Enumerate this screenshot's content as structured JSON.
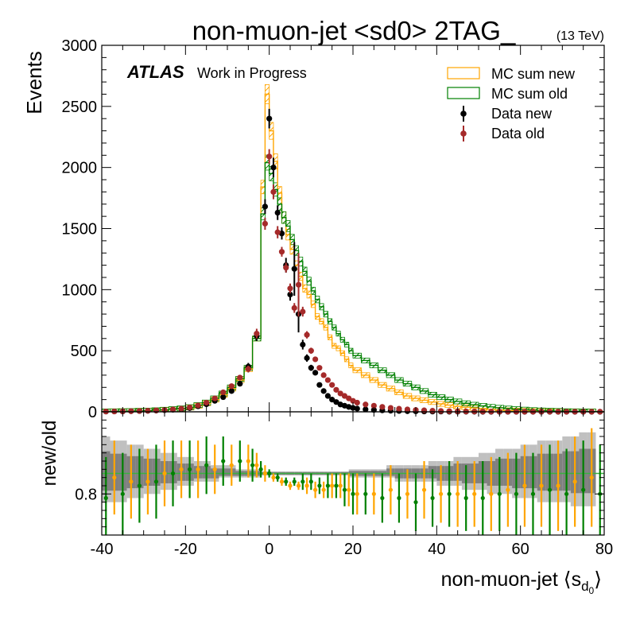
{
  "header": {
    "title": "non-muon-jet <sd0> 2TAG_",
    "energy_label": "(13 TeV)",
    "atlas_label": "ATLAS",
    "atlas_sub": "Work in Progress"
  },
  "colors": {
    "mc_new": "#ffa500",
    "mc_old": "#008000",
    "data_new": "#000000",
    "data_old": "#a52a2a",
    "ratio_band_outer": "#c0c0c0",
    "ratio_band_inner": "#808080",
    "ratio_line": "#3cb043"
  },
  "legend": {
    "position": "top-right",
    "entries": [
      {
        "key": "mc_new",
        "label": "MC sum new",
        "style": "box"
      },
      {
        "key": "mc_old",
        "label": "MC sum old",
        "style": "box"
      },
      {
        "key": "data_new",
        "label": "Data new",
        "style": "marker"
      },
      {
        "key": "data_old",
        "label": "Data old",
        "style": "marker"
      }
    ]
  },
  "chart_data": [
    {
      "id": "main",
      "type": "line",
      "subtype": "step-histogram-with-points",
      "xlim": [
        -40,
        80
      ],
      "ylim": [
        0,
        3000
      ],
      "ylabel": "Events",
      "xlabel": "",
      "xticks": [
        -40,
        -20,
        0,
        20,
        40,
        60,
        80
      ],
      "yticks": [
        0,
        500,
        1000,
        1500,
        2000,
        2500,
        3000
      ],
      "bin_edges": [
        -40,
        -38,
        -36,
        -34,
        -32,
        -30,
        -28,
        -26,
        -24,
        -22,
        -20,
        -18,
        -16,
        -14,
        -12,
        -10,
        -8,
        -6,
        -4,
        -2,
        -1,
        0,
        1,
        2,
        3,
        4,
        5,
        6,
        7,
        8,
        9,
        10,
        11,
        12,
        13,
        14,
        15,
        16,
        17,
        18,
        19,
        20,
        22,
        24,
        26,
        28,
        30,
        32,
        34,
        36,
        38,
        40,
        42,
        44,
        46,
        48,
        50,
        52,
        54,
        56,
        58,
        60,
        62,
        64,
        66,
        68,
        70,
        72,
        74,
        76,
        78,
        80
      ],
      "series": [
        {
          "name": "MC sum new",
          "key": "mc_new",
          "style": "step",
          "values": [
            3,
            4,
            5,
            6,
            8,
            10,
            12,
            15,
            20,
            25,
            35,
            50,
            70,
            100,
            140,
            190,
            260,
            350,
            600,
            1840,
            2600,
            2300,
            2050,
            1790,
            1590,
            1450,
            1330,
            1200,
            1110,
            1010,
            960,
            880,
            780,
            740,
            690,
            610,
            540,
            520,
            480,
            430,
            380,
            340,
            300,
            260,
            220,
            190,
            160,
            130,
            110,
            95,
            80,
            65,
            55,
            45,
            38,
            32,
            26,
            20,
            16,
            12,
            10,
            8,
            6,
            5,
            4,
            4,
            3,
            3,
            2,
            2
          ]
        },
        {
          "name": "MC sum old",
          "key": "mc_old",
          "style": "step",
          "values": [
            3,
            4,
            5,
            6,
            8,
            10,
            13,
            17,
            22,
            28,
            38,
            55,
            76,
            110,
            150,
            200,
            270,
            360,
            600,
            1620,
            2040,
            1950,
            1820,
            1700,
            1590,
            1520,
            1410,
            1320,
            1230,
            1150,
            1070,
            990,
            920,
            860,
            800,
            740,
            690,
            640,
            590,
            550,
            500,
            460,
            420,
            380,
            340,
            300,
            260,
            230,
            200,
            170,
            140,
            120,
            100,
            85,
            70,
            58,
            48,
            40,
            33,
            27,
            22,
            18,
            14,
            11,
            9,
            7,
            5,
            4,
            3,
            3
          ]
        },
        {
          "name": "Data new",
          "key": "data_new",
          "style": "points",
          "x": [
            -39,
            -37,
            -35,
            -33,
            -31,
            -29,
            -27,
            -25,
            -23,
            -21,
            -19,
            -17,
            -15,
            -13,
            -11,
            -9,
            -7,
            -5,
            -3,
            -1,
            0,
            1,
            2,
            3,
            4,
            5,
            6,
            7,
            8,
            9,
            10,
            11,
            12,
            13,
            14,
            15,
            16,
            17,
            18,
            19,
            20,
            21,
            23,
            25,
            27,
            29,
            31,
            33,
            35,
            37,
            39,
            41,
            43,
            45,
            47,
            49,
            51,
            53,
            55,
            57,
            59,
            61,
            63,
            65,
            67,
            69,
            71,
            73,
            75,
            77,
            79
          ],
          "values": [
            2,
            3,
            3,
            5,
            6,
            8,
            10,
            13,
            17,
            22,
            30,
            45,
            62,
            90,
            120,
            170,
            230,
            370,
            620,
            1680,
            2400,
            2000,
            1630,
            1460,
            1200,
            960,
            1170,
            800,
            550,
            440,
            360,
            320,
            220,
            170,
            130,
            100,
            80,
            60,
            50,
            40,
            32,
            26,
            20,
            15,
            12,
            9,
            7,
            5,
            4,
            3,
            2,
            2,
            1,
            1,
            1,
            1,
            0,
            0,
            0,
            0,
            0,
            0,
            0,
            0,
            0,
            0,
            0,
            0,
            0,
            0,
            0
          ],
          "errors": [
            2,
            2,
            2,
            3,
            3,
            4,
            4,
            5,
            6,
            7,
            8,
            10,
            12,
            14,
            16,
            18,
            22,
            30,
            40,
            60,
            80,
            80,
            60,
            50,
            60,
            50,
            220,
            150,
            40,
            30,
            25,
            22,
            18,
            16,
            14,
            12,
            10,
            9,
            8,
            7,
            6,
            6,
            5,
            5,
            4,
            4,
            3,
            3,
            3,
            2,
            2,
            2,
            1,
            1,
            1,
            1,
            1,
            1,
            1,
            1,
            1,
            1,
            1,
            1,
            1,
            1,
            1,
            1,
            1,
            1,
            1
          ]
        },
        {
          "name": "Data old",
          "key": "data_old",
          "style": "points",
          "x": [
            -39,
            -37,
            -35,
            -33,
            -31,
            -29,
            -27,
            -25,
            -23,
            -21,
            -19,
            -17,
            -15,
            -13,
            -11,
            -9,
            -7,
            -5,
            -3,
            -1,
            0,
            1,
            2,
            3,
            4,
            5,
            6,
            7,
            8,
            9,
            10,
            11,
            12,
            13,
            14,
            15,
            16,
            17,
            18,
            19,
            20,
            21,
            23,
            25,
            27,
            29,
            31,
            33,
            35,
            37,
            39,
            41,
            43,
            45,
            47,
            49,
            51,
            53,
            55,
            57,
            59,
            61,
            63,
            65,
            67,
            69,
            71,
            73,
            75,
            77,
            79
          ],
          "values": [
            3,
            3,
            4,
            5,
            7,
            9,
            12,
            15,
            20,
            26,
            36,
            52,
            75,
            110,
            160,
            210,
            280,
            350,
            640,
            1540,
            2090,
            1800,
            1470,
            1310,
            1180,
            1010,
            850,
            1040,
            820,
            630,
            500,
            430,
            360,
            300,
            260,
            220,
            180,
            150,
            130,
            110,
            90,
            75,
            60,
            50,
            40,
            32,
            25,
            20,
            15,
            12,
            9,
            7,
            5,
            4,
            3,
            3,
            2,
            2,
            1,
            1,
            1,
            1,
            1,
            1,
            1,
            1,
            1,
            1,
            1,
            1,
            1
          ],
          "errors": [
            2,
            2,
            2,
            3,
            3,
            4,
            4,
            5,
            6,
            7,
            8,
            10,
            12,
            14,
            16,
            18,
            22,
            28,
            40,
            50,
            60,
            60,
            50,
            40,
            40,
            40,
            40,
            260,
            40,
            30,
            25,
            22,
            18,
            16,
            14,
            12,
            10,
            9,
            8,
            7,
            6,
            6,
            5,
            5,
            4,
            4,
            3,
            3,
            3,
            2,
            2,
            2,
            1,
            1,
            1,
            1,
            1,
            1,
            1,
            1,
            1,
            1,
            1,
            1,
            1,
            1,
            1,
            1,
            1,
            1,
            1
          ]
        }
      ]
    },
    {
      "id": "ratio",
      "type": "scatter",
      "xlim": [
        -40,
        80
      ],
      "ylim": [
        0.7,
        1.0
      ],
      "ylabel": "new/old",
      "xlabel": "non-muon-jet ⟨s",
      "xlabel_sub": "d",
      "xlabel_subsub": "0",
      "xlabel_end": "⟩",
      "xticks": [
        -40,
        -20,
        0,
        20,
        40,
        60,
        80
      ],
      "yticks": [
        0.8
      ],
      "reference": 0.85,
      "band_outer": [
        0.78,
        0.78,
        0.78,
        0.79,
        0.79,
        0.8,
        0.8,
        0.81,
        0.81,
        0.82,
        0.82,
        0.83,
        0.83,
        0.83,
        0.84,
        0.84,
        0.84,
        0.84,
        0.84,
        0.845,
        0.845,
        0.845,
        0.845,
        0.845,
        0.845,
        0.845,
        0.845,
        0.845,
        0.845,
        0.845,
        0.845,
        0.845,
        0.845,
        0.845,
        0.845,
        0.845,
        0.845,
        0.845,
        0.845,
        0.845,
        0.84,
        0.84,
        0.84,
        0.84,
        0.84,
        0.84,
        0.83,
        0.83,
        0.83,
        0.83,
        0.83,
        0.82,
        0.82,
        0.82,
        0.81,
        0.81,
        0.81,
        0.8,
        0.8,
        0.8,
        0.79,
        0.79,
        0.79,
        0.78,
        0.78,
        0.78,
        0.78,
        0.77,
        0.77,
        0.77
      ],
      "band_outer_hi": [
        0.94,
        0.93,
        0.93,
        0.92,
        0.92,
        0.91,
        0.91,
        0.9,
        0.9,
        0.89,
        0.89,
        0.88,
        0.88,
        0.87,
        0.87,
        0.87,
        0.86,
        0.86,
        0.86,
        0.855,
        0.855,
        0.855,
        0.855,
        0.855,
        0.855,
        0.855,
        0.855,
        0.855,
        0.855,
        0.855,
        0.855,
        0.855,
        0.855,
        0.855,
        0.855,
        0.855,
        0.855,
        0.855,
        0.855,
        0.855,
        0.86,
        0.86,
        0.86,
        0.86,
        0.86,
        0.87,
        0.87,
        0.87,
        0.87,
        0.87,
        0.88,
        0.88,
        0.88,
        0.89,
        0.89,
        0.89,
        0.9,
        0.9,
        0.91,
        0.91,
        0.91,
        0.92,
        0.92,
        0.93,
        0.93,
        0.93,
        0.94,
        0.94,
        0.95,
        0.95
      ],
      "series": [
        {
          "name": "Data new",
          "key": "ratio_orange",
          "style": "points",
          "x": [
            -37,
            -33,
            -29,
            -25,
            -21,
            -17,
            -13,
            -9,
            -5,
            -3,
            -1,
            1,
            3,
            5,
            7,
            9,
            11,
            13,
            15,
            17,
            19,
            21,
            25,
            29,
            33,
            37,
            41,
            45,
            49,
            53,
            57,
            61,
            65,
            69,
            73,
            77
          ],
          "values": [
            0.84,
            0.83,
            0.83,
            0.85,
            0.86,
            0.86,
            0.86,
            0.87,
            0.88,
            0.87,
            0.85,
            0.84,
            0.83,
            0.82,
            0.82,
            0.82,
            0.81,
            0.81,
            0.82,
            0.82,
            0.81,
            0.8,
            0.8,
            0.81,
            0.8,
            0.81,
            0.8,
            0.8,
            0.8,
            0.8,
            0.81,
            0.82,
            0.82,
            0.82,
            0.83,
            0.84
          ],
          "errors": [
            0.09,
            0.09,
            0.08,
            0.08,
            0.07,
            0.07,
            0.06,
            0.05,
            0.04,
            0.03,
            0.02,
            0.01,
            0.01,
            0.01,
            0.01,
            0.02,
            0.02,
            0.02,
            0.03,
            0.03,
            0.04,
            0.05,
            0.05,
            0.06,
            0.06,
            0.07,
            0.07,
            0.08,
            0.08,
            0.09,
            0.09,
            0.1,
            0.1,
            0.11,
            0.11,
            0.12
          ]
        },
        {
          "name": "Data old",
          "key": "ratio_green",
          "style": "points",
          "x": [
            -39,
            -35,
            -31,
            -27,
            -23,
            -19,
            -15,
            -11,
            -7,
            -4,
            -2,
            0,
            2,
            4,
            6,
            8,
            10,
            12,
            14,
            16,
            18,
            20,
            23,
            27,
            31,
            35,
            39,
            43,
            47,
            51,
            55,
            59,
            63,
            67,
            71,
            75,
            79
          ],
          "values": [
            0.79,
            0.8,
            0.82,
            0.83,
            0.85,
            0.86,
            0.87,
            0.88,
            0.88,
            0.87,
            0.86,
            0.85,
            0.84,
            0.83,
            0.83,
            0.83,
            0.83,
            0.82,
            0.82,
            0.82,
            0.81,
            0.8,
            0.8,
            0.79,
            0.79,
            0.78,
            0.79,
            0.8,
            0.79,
            0.79,
            0.8,
            0.8,
            0.8,
            0.81,
            0.8,
            0.81,
            0.8
          ],
          "errors": [
            0.1,
            0.1,
            0.09,
            0.09,
            0.08,
            0.07,
            0.07,
            0.06,
            0.05,
            0.04,
            0.02,
            0.01,
            0.01,
            0.01,
            0.01,
            0.02,
            0.02,
            0.02,
            0.03,
            0.03,
            0.04,
            0.05,
            0.05,
            0.06,
            0.06,
            0.07,
            0.07,
            0.08,
            0.08,
            0.09,
            0.09,
            0.1,
            0.1,
            0.11,
            0.11,
            0.12,
            0.12
          ]
        }
      ]
    }
  ]
}
